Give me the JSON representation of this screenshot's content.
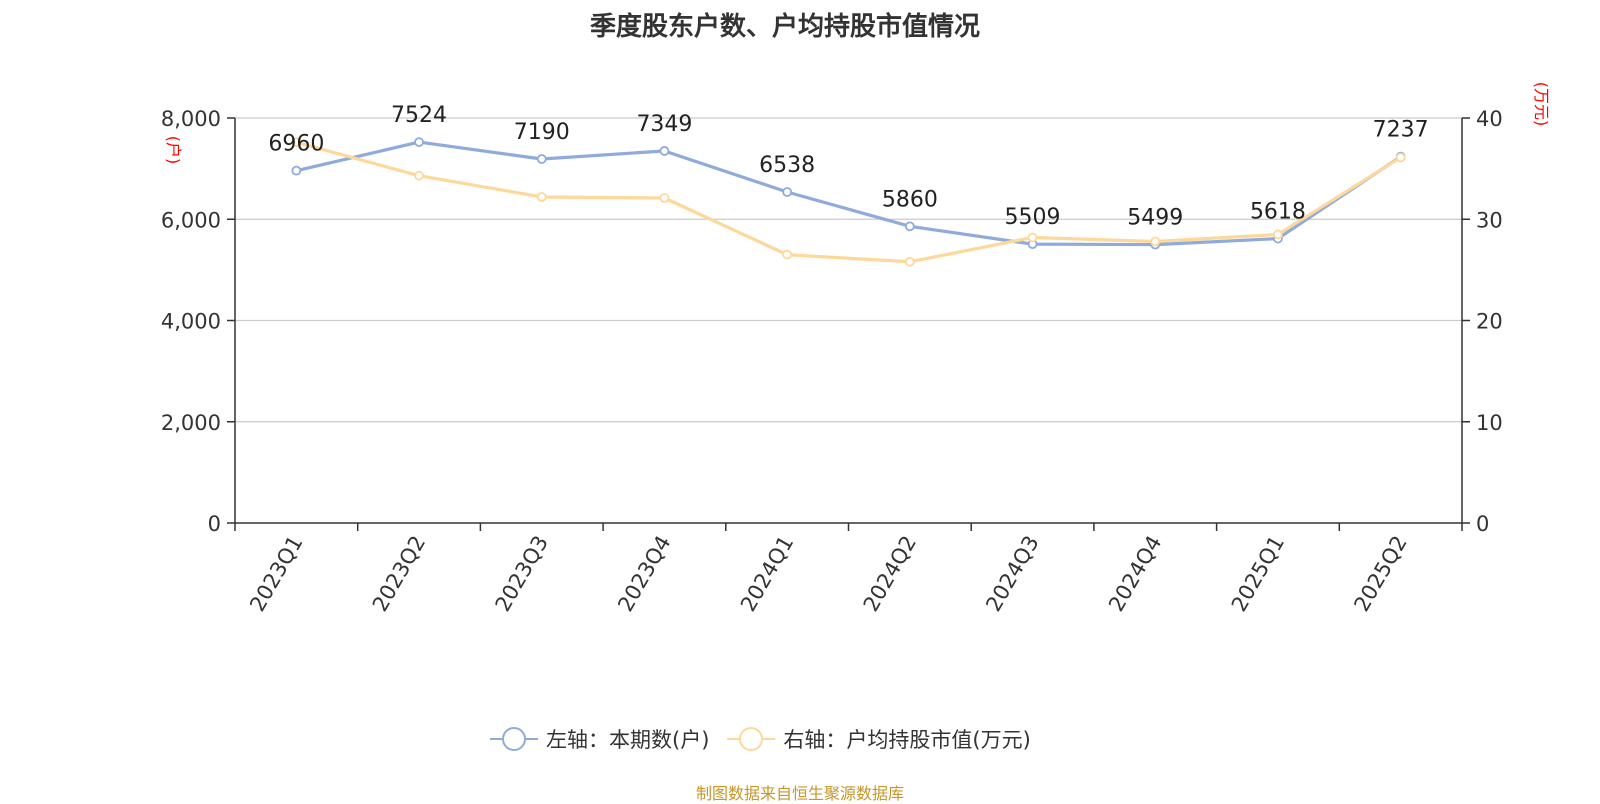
{
  "title": "季度股东户数、户均持股市值情况",
  "source": "制图数据来自恒生聚源数据库",
  "colors": {
    "series1": "#8faadc",
    "series2": "#fdd89a",
    "axis_unit": "#ff0000",
    "grid": "#cccccc",
    "axis": "#333333"
  },
  "chart_data": {
    "type": "line",
    "title": "季度股东户数、户均持股市值情况",
    "categories": [
      "2023Q1",
      "2023Q2",
      "2023Q3",
      "2023Q4",
      "2024Q1",
      "2024Q2",
      "2024Q3",
      "2024Q4",
      "2025Q1",
      "2025Q2"
    ],
    "left_axis": {
      "unit": "(户)",
      "ylim": [
        0,
        8000
      ],
      "ticks": [
        0,
        2000,
        4000,
        6000,
        8000
      ],
      "tick_labels": [
        "0",
        "2,000",
        "4,000",
        "6,000",
        "8,000"
      ]
    },
    "right_axis": {
      "unit": "(万元)",
      "ylim": [
        0,
        40
      ],
      "ticks": [
        0,
        10,
        20,
        30,
        40
      ],
      "tick_labels": [
        "0",
        "10",
        "20",
        "30",
        "40"
      ]
    },
    "series": [
      {
        "name": "左轴：本期数(户)",
        "axis": "left",
        "values": [
          6960,
          7524,
          7190,
          7349,
          6538,
          5860,
          5509,
          5499,
          5618,
          7237
        ],
        "data_labels": [
          "6960",
          "7524",
          "7190",
          "7349",
          "6538",
          "5860",
          "5509",
          "5499",
          "5618",
          "7237"
        ]
      },
      {
        "name": "右轴：户均持股市值(万元)",
        "axis": "right",
        "values": [
          37.6,
          34.3,
          32.2,
          32.1,
          26.5,
          25.8,
          28.2,
          27.8,
          28.5,
          36.1
        ]
      }
    ],
    "grid": true,
    "legend_position": "bottom"
  }
}
